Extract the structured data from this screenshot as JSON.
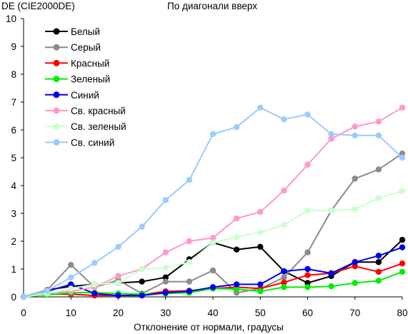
{
  "chart_data": {
    "type": "line",
    "title": "По диагонали вверх",
    "ylabel": "DE (CIE2000DE)",
    "xlabel": "Отклонение от нормали, градусы",
    "xlim": [
      0,
      80
    ],
    "ylim": [
      0,
      10
    ],
    "xticks": [
      0,
      10,
      20,
      30,
      40,
      50,
      60,
      70,
      80
    ],
    "yticks": [
      0,
      1,
      2,
      3,
      4,
      5,
      6,
      7,
      8,
      9,
      10
    ],
    "grid": false,
    "legend": "top-left",
    "x": [
      0,
      5,
      10,
      15,
      20,
      25,
      30,
      35,
      40,
      45,
      50,
      55,
      60,
      65,
      70,
      75,
      80
    ],
    "series": [
      {
        "name": "Белый",
        "color": "#000000",
        "values": [
          0,
          0.25,
          0.38,
          0.45,
          0.5,
          0.55,
          0.7,
          1.35,
          1.95,
          1.7,
          1.8,
          0.92,
          0.5,
          0.75,
          1.25,
          1.25,
          2.05
        ]
      },
      {
        "name": "Серый",
        "color": "#8c8c8c",
        "values": [
          0,
          0.25,
          1.15,
          0.35,
          0.6,
          0.12,
          0.55,
          0.55,
          0.95,
          0.15,
          0.3,
          0.7,
          1.6,
          3.1,
          4.25,
          4.58,
          5.15
        ]
      },
      {
        "name": "Красный",
        "color": "#ff0000",
        "values": [
          0,
          0.1,
          0.1,
          0.05,
          0.05,
          0.08,
          0.2,
          0.22,
          0.3,
          0.35,
          0.3,
          0.52,
          0.78,
          0.85,
          1.1,
          0.9,
          1.2
        ]
      },
      {
        "name": "Зеленый",
        "color": "#00ee00",
        "values": [
          0,
          0.08,
          0.15,
          0.15,
          0.12,
          0.1,
          0.12,
          0.15,
          0.3,
          0.28,
          0.2,
          0.35,
          0.35,
          0.38,
          0.5,
          0.58,
          0.9
        ]
      },
      {
        "name": "Синий",
        "color": "#0000ee",
        "values": [
          0,
          0.2,
          0.45,
          0.12,
          0.05,
          0.05,
          0.15,
          0.2,
          0.35,
          0.45,
          0.45,
          0.92,
          1.0,
          0.85,
          1.25,
          1.48,
          1.78
        ]
      },
      {
        "name": "Св. красный",
        "color": "#ff99cc",
        "values": [
          0,
          0.15,
          0.2,
          0.35,
          0.75,
          1.0,
          1.6,
          2.0,
          2.12,
          2.82,
          3.05,
          3.82,
          4.75,
          5.68,
          6.12,
          6.3,
          6.8
        ]
      },
      {
        "name": "Св. зеленый",
        "color": "#ccffcc",
        "values": [
          0,
          0.12,
          0.3,
          0.45,
          0.5,
          1.0,
          1.05,
          1.25,
          1.95,
          2.15,
          2.32,
          2.58,
          3.1,
          3.1,
          3.15,
          3.55,
          3.8
        ]
      },
      {
        "name": "Св. синий",
        "color": "#99ccff",
        "values": [
          0,
          0.22,
          0.7,
          1.22,
          1.8,
          2.52,
          3.48,
          4.2,
          5.85,
          6.1,
          6.8,
          6.38,
          6.55,
          5.85,
          5.8,
          5.8,
          5.0
        ]
      }
    ]
  }
}
